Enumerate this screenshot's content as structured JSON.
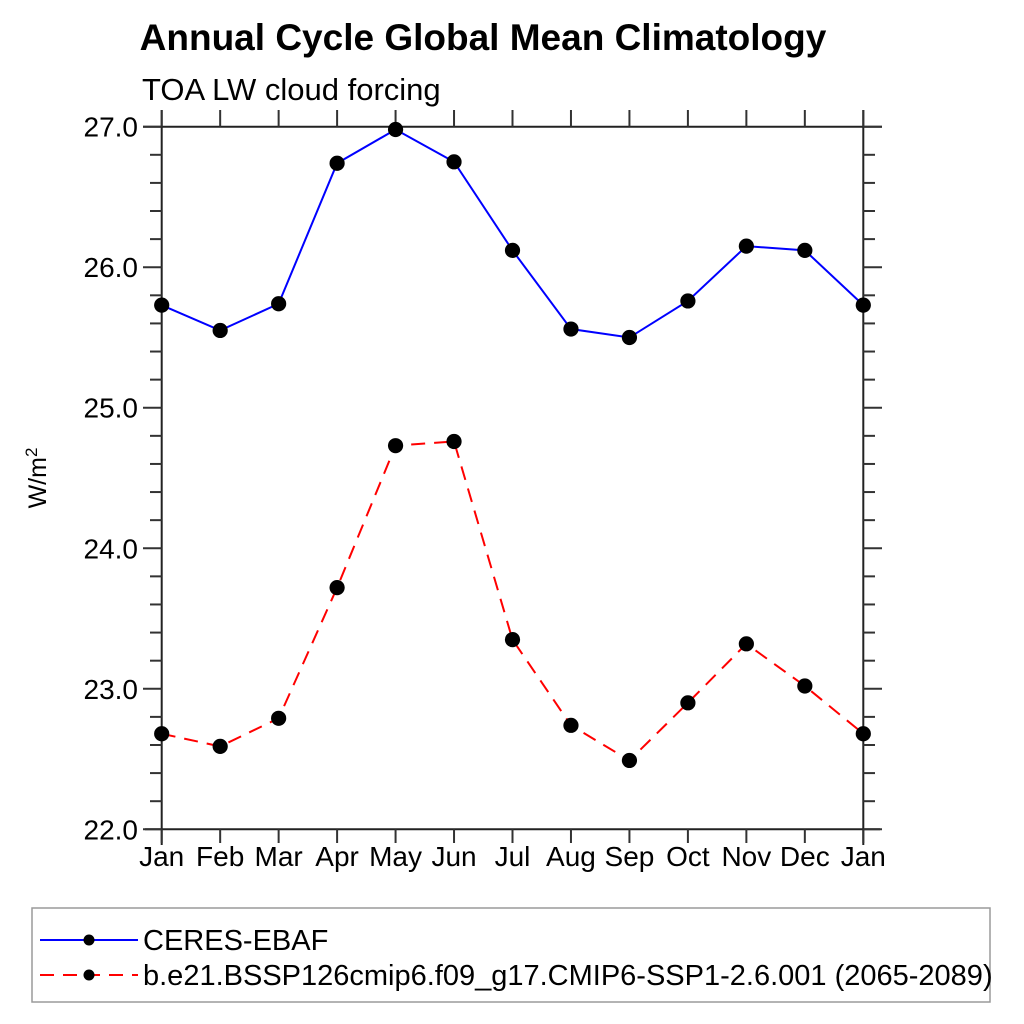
{
  "figure": {
    "title": "Annual Cycle Global Mean Climatology",
    "subtitle": "TOA LW cloud forcing"
  },
  "chart_data": {
    "type": "line",
    "title": "Annual Cycle Global Mean Climatology",
    "subtitle": "TOA LW cloud forcing",
    "xlabel": "",
    "ylabel": "W/m²",
    "x_categories": [
      "Jan",
      "Feb",
      "Mar",
      "Apr",
      "May",
      "Jun",
      "Jul",
      "Aug",
      "Sep",
      "Oct",
      "Nov",
      "Dec",
      "Jan"
    ],
    "ylim": [
      22.0,
      27.0
    ],
    "y_major_ticks": [
      "27.0",
      "26.0",
      "25.0",
      "24.0",
      "23.0",
      "22.0"
    ],
    "y_minor_step": 0.2,
    "grid": false,
    "legend_position": "bottom",
    "axis_color": "#222222",
    "marker": "filled-circle",
    "marker_color": "#000000",
    "series": [
      {
        "name": "CERES-EBAF",
        "color": "#0000ff",
        "line_style": "solid",
        "values": [
          25.73,
          25.55,
          25.74,
          26.74,
          26.98,
          26.75,
          26.12,
          25.56,
          25.5,
          25.76,
          26.15,
          26.12,
          25.73
        ]
      },
      {
        "name": "b.e21.BSSP126cmip6.f09_g17.CMIP6-SSP1-2.6.001 (2065-2089)",
        "color": "#ff0000",
        "line_style": "dashed",
        "values": [
          22.68,
          22.59,
          22.79,
          23.72,
          24.73,
          24.76,
          23.35,
          22.74,
          22.49,
          22.9,
          23.32,
          23.02,
          22.68
        ]
      }
    ]
  }
}
